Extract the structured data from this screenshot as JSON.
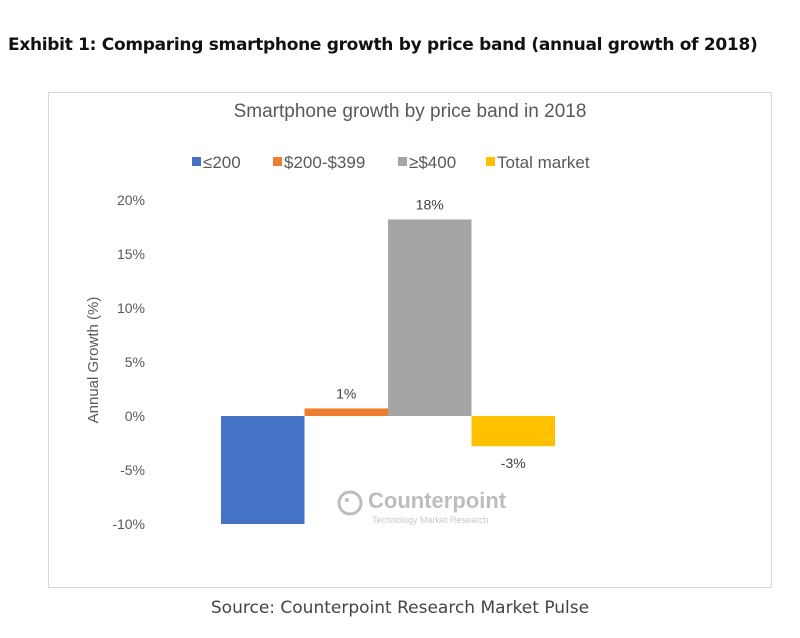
{
  "exhibit_title": "Exhibit 1: Comparing smartphone growth by price band (annual growth of 2018)",
  "source": "Source: Counterpoint Research Market Pulse",
  "watermark": {
    "brand": "Counterpoint",
    "tagline": "Technology Market Research"
  },
  "chart_data": {
    "type": "bar",
    "title": "Smartphone growth by price band in 2018",
    "xlabel": "",
    "ylabel": "Annual Growth (%)",
    "ylim": [
      -10,
      20
    ],
    "yticks": [
      "20%",
      "15%",
      "10%",
      "5%",
      "0%",
      "-5%",
      "-10%"
    ],
    "ytick_values": [
      20,
      15,
      10,
      5,
      0,
      -5,
      -10
    ],
    "grid": false,
    "legend": "top",
    "series": [
      {
        "name": "≤200",
        "value": -10,
        "label": "",
        "color": "#4472c4"
      },
      {
        "name": "$200-$399",
        "value": 0.7,
        "label": "1%",
        "color": "#ed7d31"
      },
      {
        "name": "≥$400",
        "value": 18.2,
        "label": "18%",
        "color": "#a5a5a5"
      },
      {
        "name": "Total market",
        "value": -2.8,
        "label": "-3%",
        "color": "#ffc000"
      }
    ]
  }
}
